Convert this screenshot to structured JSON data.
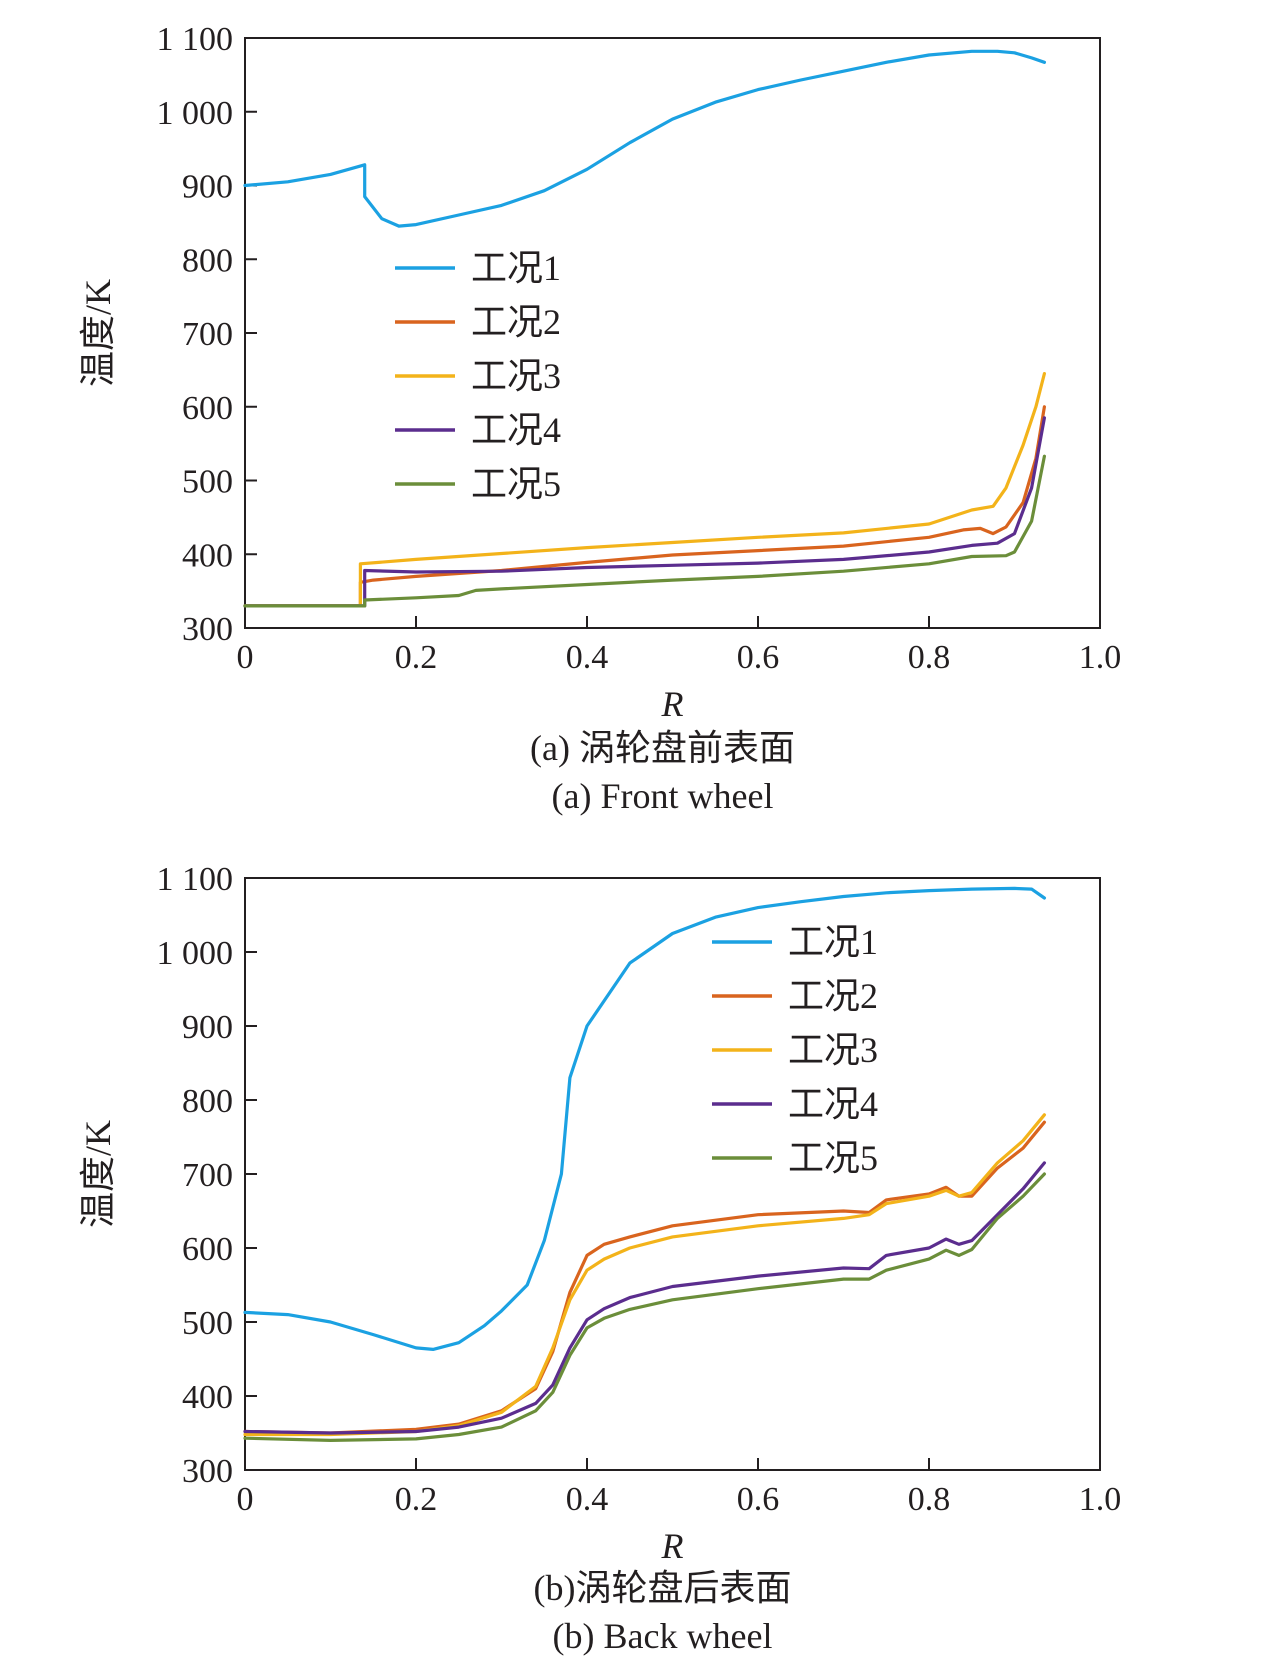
{
  "chart_data": [
    {
      "type": "line",
      "caption_cn": "(a) 涡轮盘前表面",
      "caption_en": "(a) Front wheel",
      "xlabel": "R",
      "ylabel": "温度/K",
      "xlim": [
        0,
        1.0
      ],
      "ylim": [
        300,
        1100
      ],
      "xticks": [
        "0",
        "0.2",
        "0.4",
        "0.6",
        "0.8",
        "1.0"
      ],
      "yticks": [
        "300",
        "400",
        "500",
        "600",
        "700",
        "800",
        "900",
        "1 000",
        "1 100"
      ],
      "grid": false,
      "legend_position": "center-left",
      "series": [
        {
          "name": "工况1",
          "color": "#1ba1e2",
          "x": [
            0,
            0.05,
            0.1,
            0.14,
            0.14,
            0.16,
            0.18,
            0.2,
            0.25,
            0.3,
            0.35,
            0.4,
            0.45,
            0.5,
            0.55,
            0.6,
            0.65,
            0.7,
            0.75,
            0.8,
            0.85,
            0.88,
            0.9,
            0.92,
            0.935
          ],
          "y": [
            900,
            905,
            915,
            928,
            885,
            855,
            845,
            847,
            860,
            873,
            893,
            922,
            958,
            990,
            1013,
            1030,
            1043,
            1055,
            1067,
            1077,
            1082,
            1082,
            1080,
            1073,
            1067
          ]
        },
        {
          "name": "工况2",
          "color": "#d9641e",
          "x": [
            0,
            0.05,
            0.1,
            0.135,
            0.135,
            0.15,
            0.2,
            0.3,
            0.4,
            0.5,
            0.6,
            0.7,
            0.8,
            0.84,
            0.86,
            0.875,
            0.89,
            0.91,
            0.925,
            0.935
          ],
          "y": [
            330,
            330,
            330,
            330,
            362,
            365,
            370,
            378,
            389,
            399,
            405,
            411,
            423,
            433,
            435,
            428,
            437,
            470,
            530,
            600
          ]
        },
        {
          "name": "工况3",
          "color": "#f3b31a",
          "x": [
            0,
            0.05,
            0.1,
            0.135,
            0.135,
            0.2,
            0.3,
            0.4,
            0.5,
            0.6,
            0.7,
            0.8,
            0.85,
            0.875,
            0.89,
            0.91,
            0.925,
            0.935
          ],
          "y": [
            330,
            330,
            330,
            330,
            387,
            393,
            401,
            409,
            416,
            423,
            429,
            441,
            460,
            465,
            490,
            548,
            600,
            645
          ]
        },
        {
          "name": "工况4",
          "color": "#5b2d8e",
          "x": [
            0,
            0.05,
            0.1,
            0.14,
            0.14,
            0.2,
            0.3,
            0.4,
            0.5,
            0.6,
            0.7,
            0.8,
            0.85,
            0.88,
            0.9,
            0.92,
            0.935
          ],
          "y": [
            330,
            330,
            330,
            330,
            378,
            376,
            377,
            382,
            385,
            388,
            393,
            403,
            412,
            415,
            428,
            490,
            585
          ]
        },
        {
          "name": "工况5",
          "color": "#6b8e3a",
          "x": [
            0,
            0.05,
            0.1,
            0.14,
            0.14,
            0.2,
            0.25,
            0.27,
            0.3,
            0.4,
            0.5,
            0.6,
            0.7,
            0.8,
            0.85,
            0.89,
            0.9,
            0.92,
            0.935
          ],
          "y": [
            330,
            330,
            330,
            330,
            338,
            341,
            344,
            351,
            353,
            359,
            365,
            370,
            377,
            387,
            397,
            398,
            403,
            445,
            533
          ]
        }
      ]
    },
    {
      "type": "line",
      "caption_cn": "(b)涡轮盘后表面",
      "caption_en": "(b) Back wheel",
      "xlabel": "R",
      "ylabel": "温度/K",
      "xlim": [
        0,
        1.0
      ],
      "ylim": [
        300,
        1100
      ],
      "xticks": [
        "0",
        "0.2",
        "0.4",
        "0.6",
        "0.8",
        "1.0"
      ],
      "yticks": [
        "300",
        "400",
        "500",
        "600",
        "700",
        "800",
        "900",
        "1 000",
        "1 100"
      ],
      "grid": false,
      "legend_position": "top-right",
      "series": [
        {
          "name": "工况1",
          "color": "#1ba1e2",
          "x": [
            0,
            0.05,
            0.1,
            0.15,
            0.2,
            0.22,
            0.25,
            0.28,
            0.3,
            0.33,
            0.35,
            0.37,
            0.38,
            0.4,
            0.45,
            0.5,
            0.55,
            0.6,
            0.65,
            0.7,
            0.75,
            0.8,
            0.85,
            0.9,
            0.92,
            0.935
          ],
          "y": [
            513,
            510,
            500,
            483,
            465,
            463,
            472,
            495,
            515,
            550,
            610,
            700,
            830,
            900,
            985,
            1025,
            1047,
            1060,
            1068,
            1075,
            1080,
            1083,
            1085,
            1086,
            1085,
            1073
          ]
        },
        {
          "name": "工况2",
          "color": "#d9641e",
          "x": [
            0,
            0.1,
            0.2,
            0.25,
            0.3,
            0.34,
            0.36,
            0.38,
            0.4,
            0.42,
            0.45,
            0.5,
            0.6,
            0.7,
            0.73,
            0.75,
            0.8,
            0.82,
            0.835,
            0.85,
            0.88,
            0.91,
            0.935
          ],
          "y": [
            352,
            350,
            355,
            362,
            380,
            410,
            460,
            540,
            590,
            605,
            615,
            630,
            645,
            650,
            648,
            665,
            673,
            682,
            670,
            670,
            708,
            735,
            770
          ]
        },
        {
          "name": "工况3",
          "color": "#f3b31a",
          "x": [
            0,
            0.1,
            0.2,
            0.25,
            0.3,
            0.34,
            0.36,
            0.38,
            0.4,
            0.42,
            0.45,
            0.5,
            0.6,
            0.7,
            0.73,
            0.75,
            0.8,
            0.82,
            0.835,
            0.85,
            0.88,
            0.91,
            0.935
          ],
          "y": [
            348,
            348,
            352,
            360,
            378,
            413,
            465,
            530,
            570,
            585,
            600,
            615,
            630,
            640,
            645,
            660,
            670,
            678,
            670,
            675,
            715,
            745,
            780
          ]
        },
        {
          "name": "工况4",
          "color": "#5b2d8e",
          "x": [
            0,
            0.1,
            0.2,
            0.25,
            0.3,
            0.34,
            0.36,
            0.38,
            0.4,
            0.42,
            0.45,
            0.5,
            0.6,
            0.7,
            0.73,
            0.75,
            0.8,
            0.82,
            0.835,
            0.85,
            0.88,
            0.91,
            0.935
          ],
          "y": [
            352,
            350,
            352,
            358,
            370,
            390,
            415,
            465,
            503,
            518,
            533,
            548,
            562,
            573,
            572,
            590,
            600,
            612,
            605,
            610,
            645,
            680,
            715
          ]
        },
        {
          "name": "工况5",
          "color": "#6b8e3a",
          "x": [
            0,
            0.1,
            0.2,
            0.25,
            0.3,
            0.34,
            0.36,
            0.38,
            0.4,
            0.42,
            0.45,
            0.5,
            0.6,
            0.7,
            0.73,
            0.75,
            0.8,
            0.82,
            0.835,
            0.85,
            0.88,
            0.91,
            0.935
          ],
          "y": [
            343,
            340,
            342,
            348,
            358,
            380,
            405,
            455,
            492,
            505,
            517,
            530,
            545,
            558,
            558,
            570,
            585,
            597,
            590,
            598,
            640,
            670,
            700
          ]
        }
      ]
    }
  ]
}
